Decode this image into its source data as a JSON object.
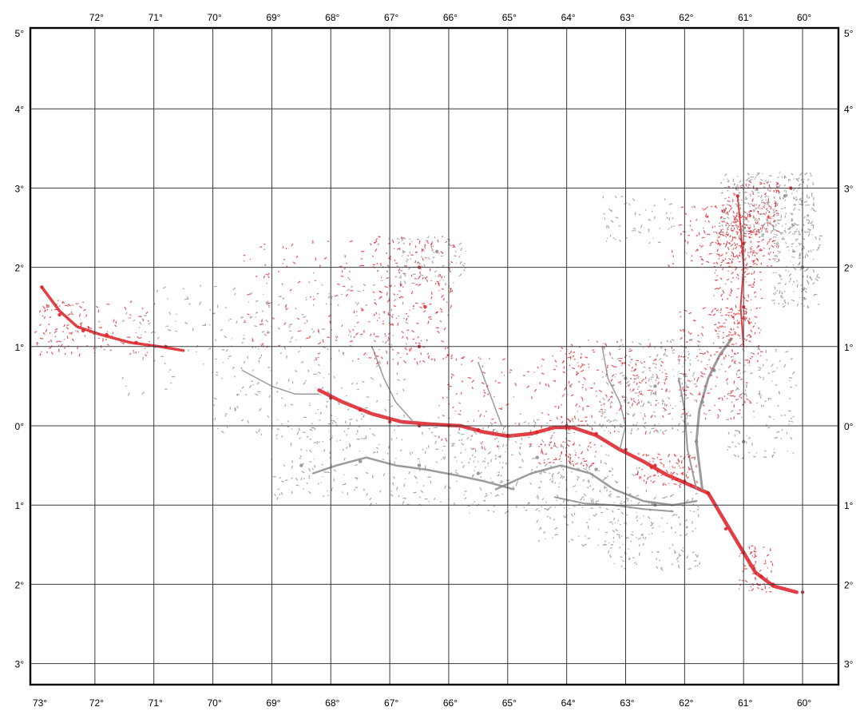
{
  "map": {
    "top_lon_labels": [
      "72°",
      "71°",
      "70°",
      "69°",
      "68°",
      "67°",
      "66°",
      "65°",
      "64°",
      "63°",
      "62°",
      "61°",
      "60°"
    ],
    "bottom_lon_labels": [
      "73°",
      "72°",
      "71°",
      "70°",
      "69°",
      "68°",
      "67°",
      "66°",
      "65°",
      "64°",
      "63°",
      "62°",
      "61°",
      "60°"
    ],
    "left_lat_labels": [
      "5°",
      "4°",
      "3°",
      "2°",
      "1°",
      "0°",
      "1°",
      "2°",
      "3°"
    ],
    "right_lat_labels": [
      "5°",
      "4°",
      "3°",
      "2°",
      "1°",
      "0°",
      "1°",
      "2°",
      "3°"
    ],
    "lon_range": [
      73,
      59.4
    ],
    "lat_range": [
      5,
      -3.3
    ],
    "grid": true,
    "colors": {
      "frame": "#000000",
      "grid": "#3a3a3a",
      "water_red": "#dd1c24",
      "water_gray": "#8a8a8a"
    }
  },
  "chart_data": {
    "type": "scatter",
    "x_axis": "longitude (degrees west)",
    "y_axis": "latitude (degrees north/south)",
    "series": [
      {
        "color": "red",
        "points": [
          [
            72.9,
            1.75
          ],
          [
            72.6,
            1.4
          ],
          [
            72.2,
            1.2
          ],
          [
            71.8,
            1.15
          ],
          [
            71.3,
            1.05
          ],
          [
            70.8,
            1.0
          ],
          [
            66.5,
            2.0
          ],
          [
            66.4,
            1.5
          ],
          [
            66.5,
            1.0
          ],
          [
            68.0,
            0.35
          ],
          [
            67.5,
            0.2
          ],
          [
            67.0,
            0.05
          ],
          [
            66.5,
            0.0
          ],
          [
            66.0,
            0.0
          ],
          [
            65.5,
            -0.05
          ],
          [
            65.0,
            -0.12
          ],
          [
            64.5,
            -0.08
          ],
          [
            64.0,
            0.0
          ],
          [
            63.5,
            -0.1
          ],
          [
            63.0,
            -0.3
          ],
          [
            62.5,
            -0.5
          ],
          [
            62.0,
            -0.7
          ],
          [
            61.6,
            -0.85
          ],
          [
            61.3,
            -1.3
          ],
          [
            61.0,
            -1.6
          ],
          [
            60.7,
            -1.9
          ],
          [
            60.5,
            -2.0
          ],
          [
            60.0,
            -2.1
          ],
          [
            61.0,
            1.5
          ],
          [
            61.0,
            2.3
          ],
          [
            61.1,
            2.9
          ],
          [
            60.2,
            3.0
          ]
        ]
      },
      {
        "color": "gray",
        "points": [
          [
            68.5,
            -0.5
          ],
          [
            67.5,
            -0.45
          ],
          [
            66.5,
            -0.5
          ],
          [
            65.5,
            -0.6
          ],
          [
            64.5,
            -0.4
          ],
          [
            63.5,
            -0.55
          ],
          [
            62.5,
            -1.0
          ],
          [
            61.8,
            -0.2
          ],
          [
            61.7,
            0.3
          ],
          [
            61.5,
            0.7
          ],
          [
            62.5,
            0.5
          ],
          [
            61.0,
            -0.2
          ],
          [
            60.3,
            2.9
          ],
          [
            60.0,
            2.0
          ],
          [
            66.2,
            2.2
          ],
          [
            63.0,
            0.6
          ]
        ]
      }
    ]
  }
}
